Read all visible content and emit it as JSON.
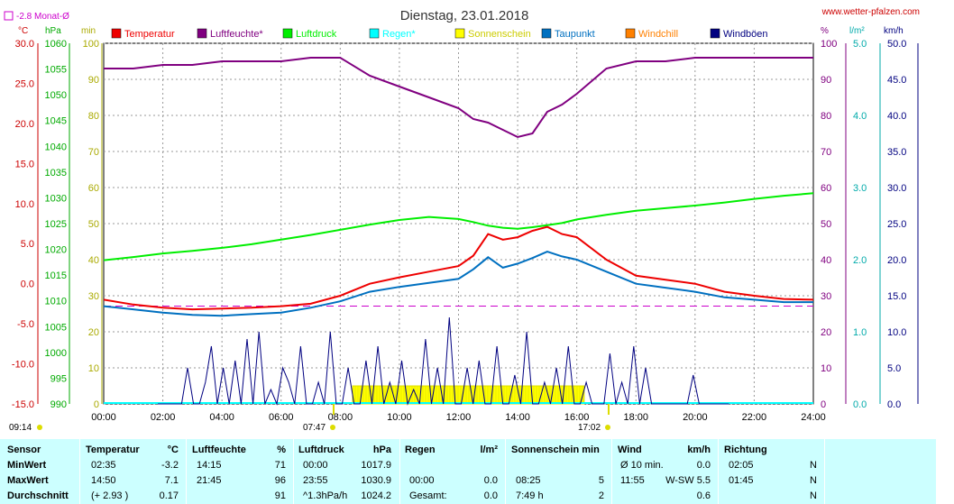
{
  "header": {
    "title": "Dienstag, 23.01.2018",
    "website": "www.wetter-pfalzen.com",
    "monthly_avg": "-2.8 Monat-Ø"
  },
  "axes": {
    "temp_unit": "°C",
    "press_unit": "hPa",
    "sun_unit": "min",
    "hum_unit": "%",
    "rain_unit": "l/m²",
    "wind_unit": "km/h",
    "temp_ticks": [
      "30.0",
      "25.0",
      "20.0",
      "15.0",
      "10.0",
      "5.0",
      "0.0",
      "-5.0",
      "-10.0",
      "-15.0"
    ],
    "press_ticks": [
      "1060",
      "1055",
      "1050",
      "1045",
      "1040",
      "1035",
      "1030",
      "1025",
      "1020",
      "1015",
      "1010",
      "1005",
      "1000",
      "995",
      "990"
    ],
    "sun_ticks": [
      "100",
      "90",
      "80",
      "70",
      "60",
      "50",
      "40",
      "30",
      "20",
      "10",
      "0"
    ],
    "hum_ticks": [
      "100",
      "90",
      "80",
      "70",
      "60",
      "50",
      "40",
      "30",
      "20",
      "10",
      "0"
    ],
    "rain_ticks": [
      "5.0",
      "4.0",
      "3.0",
      "2.0",
      "1.0",
      "0.0"
    ],
    "wind_ticks": [
      "50.0",
      "45.0",
      "40.0",
      "35.0",
      "30.0",
      "25.0",
      "20.0",
      "15.0",
      "10.0",
      "5.0",
      "0.0"
    ],
    "time_ticks": [
      "00:00",
      "02:00",
      "04:00",
      "06:00",
      "08:00",
      "10:00",
      "12:00",
      "14:00",
      "16:00",
      "18:00",
      "20:00",
      "22:00",
      "24:00"
    ],
    "sunrise_label": "07:47",
    "sunset_label": "17:02",
    "moonrise_label": "09:14"
  },
  "legend": [
    {
      "name": "Temperatur",
      "color": "#ee0000"
    },
    {
      "name": "Luftfeuchte*",
      "color": "#800080"
    },
    {
      "name": "Luftdruck",
      "color": "#00ee00"
    },
    {
      "name": "Regen*",
      "color": "#00ffff"
    },
    {
      "name": "Sonnenschein",
      "color": "#ffff00"
    },
    {
      "name": "Taupunkt",
      "color": "#0070c0"
    },
    {
      "name": "Windchill",
      "color": "#ff8000"
    },
    {
      "name": "Windböen",
      "color": "#000080"
    }
  ],
  "chart_data": {
    "type": "line",
    "x": [
      "00:00",
      "01:00",
      "02:00",
      "03:00",
      "04:00",
      "05:00",
      "06:00",
      "07:00",
      "08:00",
      "09:00",
      "10:00",
      "11:00",
      "12:00",
      "12:30",
      "13:00",
      "13:30",
      "14:00",
      "14:30",
      "15:00",
      "15:30",
      "16:00",
      "17:00",
      "18:00",
      "19:00",
      "20:00",
      "21:00",
      "22:00",
      "23:00",
      "24:00"
    ],
    "series": [
      {
        "name": "Temperatur",
        "axis": "°C",
        "values": [
          -2.0,
          -2.6,
          -3.0,
          -3.2,
          -3.1,
          -3.0,
          -2.8,
          -2.5,
          -1.5,
          0.0,
          0.8,
          1.5,
          2.2,
          3.5,
          6.2,
          5.5,
          5.8,
          6.6,
          7.1,
          6.2,
          5.8,
          3.0,
          1.0,
          0.5,
          0.0,
          -1.0,
          -1.5,
          -1.9,
          -2.0
        ]
      },
      {
        "name": "Taupunkt",
        "axis": "°C",
        "values": [
          -2.8,
          -3.2,
          -3.6,
          -3.9,
          -4.0,
          -3.8,
          -3.6,
          -3.0,
          -2.2,
          -1.0,
          -0.4,
          0.1,
          0.6,
          1.8,
          3.3,
          2.0,
          2.5,
          3.2,
          4.0,
          3.4,
          3.0,
          1.5,
          0.0,
          -0.5,
          -1.0,
          -1.7,
          -2.0,
          -2.3,
          -2.3
        ]
      },
      {
        "name": "Luftfeuchte*",
        "axis": "%",
        "values": [
          93,
          93,
          94,
          94,
          95,
          95,
          95,
          96,
          96,
          91,
          88,
          85,
          82,
          79,
          78,
          76,
          74,
          75,
          81,
          83,
          86,
          93,
          95,
          95,
          96,
          96,
          96,
          96,
          96
        ]
      },
      {
        "name": "Luftdruck",
        "axis": "hPa",
        "values": [
          1017.9,
          1018.5,
          1019.2,
          1019.7,
          1020.3,
          1021.0,
          1021.9,
          1022.8,
          1023.8,
          1024.8,
          1025.7,
          1026.3,
          1025.9,
          1025.3,
          1024.6,
          1024.2,
          1024.0,
          1024.3,
          1024.7,
          1025.1,
          1025.8,
          1026.7,
          1027.5,
          1028.0,
          1028.5,
          1029.1,
          1029.8,
          1030.4,
          1030.9
        ]
      }
    ],
    "wind_gusts_kmh": [
      0,
      0,
      0,
      0,
      0,
      5,
      0,
      0,
      3,
      8,
      0,
      5,
      0,
      6,
      0,
      9,
      0,
      10,
      0,
      2,
      0,
      5,
      3,
      0,
      8,
      0,
      0,
      3,
      0,
      10,
      0,
      0,
      5,
      0,
      0,
      6,
      0,
      8,
      0,
      3,
      0,
      6,
      0,
      2,
      0,
      9,
      0,
      5,
      0,
      12,
      0,
      0,
      5,
      0,
      6,
      0,
      0,
      8,
      0,
      0,
      4,
      0,
      10,
      0,
      0,
      3,
      0,
      5,
      0,
      8,
      0,
      0,
      3,
      0,
      0,
      0,
      7,
      0,
      3,
      0,
      8,
      0,
      5,
      0,
      0,
      0,
      0,
      0,
      0,
      0,
      4,
      0,
      0,
      0,
      0,
      0,
      0
    ],
    "sunshine_min_per_10": {
      "start": "08:25",
      "end": "16:15",
      "max": 5
    },
    "monthly_avg_temp": -2.8
  },
  "table": {
    "headers": {
      "sensor": "Sensor",
      "temp": "Temperatur",
      "temp_unit": "°C",
      "hum": "Luftfeuchte",
      "hum_unit": "%",
      "press": "Luftdruck",
      "press_unit": "hPa",
      "rain": "Regen",
      "rain_unit": "l/m²",
      "sun": "Sonnenschein min",
      "wind": "Wind",
      "wind_unit": "km/h",
      "dir": "Richtung"
    },
    "rows": [
      {
        "label": "MinWert",
        "t_time": "02:35",
        "t_val": "-3.2",
        "h_time": "14:15",
        "h_val": "71",
        "p_time": "00:00",
        "p_val": "1017.9",
        "r_time": "",
        "r_val": "",
        "s_time": "",
        "s_val": "",
        "w_time": "Ø 10 min.",
        "w_val": "0.0",
        "d_time": "02:05",
        "d_val": "N"
      },
      {
        "label": "MaxWert",
        "t_time": "14:50",
        "t_val": "7.1",
        "h_time": "21:45",
        "h_val": "96",
        "p_time": "23:55",
        "p_val": "1030.9",
        "r_time": "00:00",
        "r_val": "0.0",
        "s_time": "08:25",
        "s_val": "5",
        "w_time": "11:55",
        "w_val": "W-SW 5.5",
        "d_time": "01:45",
        "d_val": "N"
      },
      {
        "label": "Durchschnitt",
        "t_time": "(+ 2.93 )",
        "t_val": "0.17",
        "h_time": "",
        "h_val": "91",
        "p_time": "^1.3hPa/h",
        "p_val": "1024.2",
        "r_time": "Gesamt:",
        "r_val": "0.0",
        "s_time": "7:49 h",
        "s_val": "2",
        "w_time": "",
        "w_val": "0.6",
        "d_time": "",
        "d_val": "N"
      }
    ]
  }
}
